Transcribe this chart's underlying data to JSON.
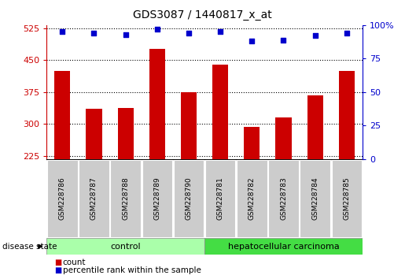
{
  "title": "GDS3087 / 1440817_x_at",
  "samples": [
    "GSM228786",
    "GSM228787",
    "GSM228788",
    "GSM228789",
    "GSM228790",
    "GSM228781",
    "GSM228782",
    "GSM228783",
    "GSM228784",
    "GSM228785"
  ],
  "counts": [
    425,
    335,
    337,
    477,
    375,
    440,
    293,
    315,
    368,
    425
  ],
  "percentiles": [
    95,
    94,
    93,
    97,
    94,
    95,
    88,
    89,
    92,
    94
  ],
  "ylim_left": [
    218,
    532
  ],
  "ylim_right": [
    0,
    100
  ],
  "yticks_left": [
    225,
    300,
    375,
    450,
    525
  ],
  "yticks_right": [
    0,
    25,
    50,
    75,
    100
  ],
  "bar_color": "#cc0000",
  "dot_color": "#0000cc",
  "n_control": 5,
  "n_carcinoma": 5,
  "control_label": "control",
  "carcinoma_label": "hepatocellular carcinoma",
  "disease_state_label": "disease state",
  "legend_count": "count",
  "legend_percentile": "percentile rank within the sample",
  "control_color": "#aaffaa",
  "carcinoma_color": "#44dd44",
  "tick_label_area_color": "#cccccc",
  "bar_width": 0.5,
  "baseline": 218
}
